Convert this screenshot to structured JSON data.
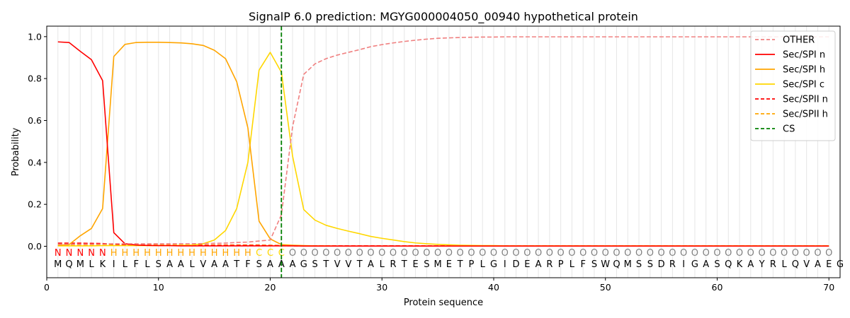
{
  "chart_data": {
    "type": "line",
    "title": "SignalP 6.0 prediction: MGYG000004050_00940 hypothetical protein",
    "xlabel": "Protein sequence",
    "ylabel": "Probability",
    "xlim": [
      0,
      71
    ],
    "ylim": [
      -0.15,
      1.05
    ],
    "x_ticks": [
      0,
      10,
      20,
      30,
      40,
      50,
      60,
      70
    ],
    "y_ticks": [
      "0.0",
      "0.2",
      "0.4",
      "0.6",
      "0.8",
      "1.0"
    ],
    "y_tick_values": [
      0.0,
      0.2,
      0.4,
      0.6,
      0.8,
      1.0
    ],
    "grid": "vertical lines at each residue",
    "legend_position": "top-right",
    "sequence": "MQMLKILFLSAALVAATFSAAAGSTVVTALRTESMETPLGIDEARPLFSWQMSSDRIGASQKAYRLQVAEG",
    "labels": "NNNNNHHHHHHHHHHHHHCCCOOOOOOOOOOOOOOOOOOOOOOOOOOOOOOOOOOOOOOOOOOOOOOOOO",
    "label_colors": {
      "N": "#ff0000",
      "H": "#ffa500",
      "C": "#ffd700",
      "O": "#808080"
    },
    "cs_position": 21,
    "series": [
      {
        "name": "OTHER",
        "color": "#f08080",
        "dash": true,
        "values": [
          0.01,
          0.01,
          0.01,
          0.01,
          0.01,
          0.012,
          0.012,
          0.012,
          0.012,
          0.012,
          0.012,
          0.012,
          0.012,
          0.013,
          0.014,
          0.015,
          0.018,
          0.02,
          0.025,
          0.03,
          0.15,
          0.57,
          0.82,
          0.87,
          0.895,
          0.912,
          0.925,
          0.938,
          0.952,
          0.962,
          0.97,
          0.977,
          0.983,
          0.988,
          0.992,
          0.994,
          0.996,
          0.997,
          0.998,
          0.998,
          0.999,
          0.999,
          0.999,
          0.999,
          0.999,
          0.999,
          0.999,
          0.999,
          0.999,
          0.999,
          0.999,
          0.999,
          0.999,
          0.999,
          0.999,
          0.999,
          0.999,
          0.999,
          0.999,
          0.999,
          0.999,
          0.999,
          0.999,
          0.999,
          0.999,
          0.999,
          0.999,
          0.999,
          0.999,
          0.999
        ]
      },
      {
        "name": "Sec/SPI n",
        "color": "#ff0000",
        "dash": false,
        "values": [
          0.975,
          0.972,
          0.93,
          0.89,
          0.79,
          0.065,
          0.012,
          0.006,
          0.004,
          0.003,
          0.003,
          0.002,
          0.002,
          0.002,
          0.002,
          0.002,
          0.002,
          0.002,
          0.002,
          0.002,
          0.002,
          0.002,
          0.001,
          0.001,
          0.001,
          0.001,
          0.001,
          0.001,
          0.001,
          0.001,
          0.001,
          0.001,
          0.001,
          0.001,
          0.001,
          0.001,
          0.001,
          0.001,
          0.001,
          0.001,
          0.001,
          0.001,
          0.001,
          0.001,
          0.001,
          0.001,
          0.001,
          0.001,
          0.001,
          0.001,
          0.001,
          0.001,
          0.001,
          0.001,
          0.001,
          0.001,
          0.001,
          0.001,
          0.001,
          0.001,
          0.001,
          0.001,
          0.001,
          0.001,
          0.001,
          0.001,
          0.001,
          0.001,
          0.001,
          0.001
        ]
      },
      {
        "name": "Sec/SPI h",
        "color": "#ffa500",
        "dash": false,
        "values": [
          0.005,
          0.008,
          0.05,
          0.085,
          0.18,
          0.905,
          0.963,
          0.972,
          0.973,
          0.973,
          0.972,
          0.97,
          0.966,
          0.958,
          0.935,
          0.895,
          0.785,
          0.565,
          0.12,
          0.035,
          0.008,
          0.005,
          0.003,
          0.002,
          0.002,
          0.001,
          0.001,
          0.001,
          0.001,
          0.001,
          0.001,
          0.001,
          0.001,
          0.001,
          0.001,
          0.001,
          0.001,
          0.001,
          0.001,
          0.001,
          0.001,
          0.001,
          0.001,
          0.001,
          0.001,
          0.001,
          0.001,
          0.001,
          0.001,
          0.001,
          0.001,
          0.001,
          0.001,
          0.001,
          0.001,
          0.001,
          0.001,
          0.001,
          0.001,
          0.001,
          0.001,
          0.001,
          0.001,
          0.001,
          0.001,
          0.001,
          0.001,
          0.001,
          0.001,
          0.001
        ]
      },
      {
        "name": "Sec/SPI c",
        "color": "#ffd700",
        "dash": false,
        "values": [
          0.002,
          0.002,
          0.002,
          0.002,
          0.003,
          0.003,
          0.003,
          0.003,
          0.003,
          0.003,
          0.003,
          0.004,
          0.006,
          0.012,
          0.03,
          0.075,
          0.18,
          0.4,
          0.84,
          0.925,
          0.83,
          0.43,
          0.175,
          0.125,
          0.1,
          0.085,
          0.072,
          0.06,
          0.047,
          0.038,
          0.03,
          0.022,
          0.016,
          0.012,
          0.009,
          0.007,
          0.005,
          0.004,
          0.003,
          0.003,
          0.002,
          0.002,
          0.002,
          0.002,
          0.002,
          0.002,
          0.002,
          0.002,
          0.002,
          0.002,
          0.002,
          0.002,
          0.002,
          0.002,
          0.002,
          0.002,
          0.002,
          0.002,
          0.002,
          0.002,
          0.002,
          0.002,
          0.002,
          0.002,
          0.002,
          0.002,
          0.002,
          0.002,
          0.002,
          0.002
        ]
      },
      {
        "name": "Sec/SPII n",
        "color": "#ff0000",
        "dash": true,
        "values": [
          0.015,
          0.015,
          0.015,
          0.014,
          0.013,
          0.01,
          0.008,
          0.006,
          0.005,
          0.004,
          0.004,
          0.004,
          0.004,
          0.004,
          0.004,
          0.004,
          0.004,
          0.004,
          0.004,
          0.003,
          0.003,
          0.002,
          0.002,
          0.002,
          0.002,
          0.002,
          0.002,
          0.002,
          0.002,
          0.002,
          0.002,
          0.002,
          0.002,
          0.002,
          0.002,
          0.002,
          0.002,
          0.002,
          0.002,
          0.002,
          0.002,
          0.002,
          0.002,
          0.002,
          0.002,
          0.002,
          0.002,
          0.002,
          0.002,
          0.002,
          0.002,
          0.002,
          0.002,
          0.002,
          0.002,
          0.002,
          0.002,
          0.002,
          0.002,
          0.002,
          0.002,
          0.002,
          0.002,
          0.002,
          0.002,
          0.002,
          0.002,
          0.002,
          0.002,
          0.002
        ]
      },
      {
        "name": "Sec/SPII h",
        "color": "#ffa500",
        "dash": true,
        "values": [
          0.004,
          0.004,
          0.004,
          0.004,
          0.005,
          0.006,
          0.006,
          0.006,
          0.006,
          0.006,
          0.006,
          0.006,
          0.006,
          0.006,
          0.006,
          0.006,
          0.006,
          0.006,
          0.006,
          0.005,
          0.004,
          0.003,
          0.002,
          0.002,
          0.002,
          0.001,
          0.001,
          0.001,
          0.001,
          0.001,
          0.001,
          0.001,
          0.001,
          0.001,
          0.001,
          0.001,
          0.001,
          0.001,
          0.001,
          0.001,
          0.001,
          0.001,
          0.001,
          0.001,
          0.001,
          0.001,
          0.001,
          0.001,
          0.001,
          0.001,
          0.001,
          0.001,
          0.001,
          0.001,
          0.001,
          0.001,
          0.001,
          0.001,
          0.001,
          0.001,
          0.001,
          0.001,
          0.001,
          0.001,
          0.001,
          0.001,
          0.001,
          0.001,
          0.001,
          0.001
        ]
      },
      {
        "name": "CS",
        "color": "#008000",
        "dash": true,
        "vertical_at": 21
      }
    ]
  }
}
